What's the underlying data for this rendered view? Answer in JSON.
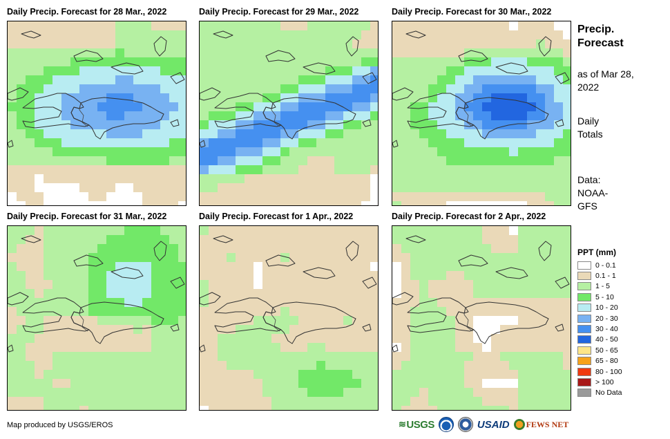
{
  "panels": [
    {
      "title": "Daily Precip. Forecast for 28 Mar., 2022"
    },
    {
      "title": "Daily Precip. Forecast for 29 Mar., 2022"
    },
    {
      "title": "Daily Precip. Forecast for 30 Mar., 2022"
    },
    {
      "title": "Daily Precip. Forecast for 31 Mar., 2022"
    },
    {
      "title": "Daily Precip. Forecast for 1 Apr., 2022"
    },
    {
      "title": "Daily Precip. Forecast for 2 Apr., 2022"
    }
  ],
  "side": {
    "title": "Precip. Forecast",
    "as_of": "as of Mar 28, 2022",
    "daily": "Daily Totals",
    "data": "Data: NOAA- GFS"
  },
  "legend": {
    "title": "PPT (mm)",
    "items": [
      {
        "label": "0 - 0.1",
        "color": "#ffffff"
      },
      {
        "label": "0.1 - 1",
        "color": "#ead9b8"
      },
      {
        "label": "1 - 5",
        "color": "#b5f0a2"
      },
      {
        "label": "5 - 10",
        "color": "#72e868"
      },
      {
        "label": "10 - 20",
        "color": "#b8ecf2"
      },
      {
        "label": "20 - 30",
        "color": "#78b2f2"
      },
      {
        "label": "30 - 40",
        "color": "#4590f0"
      },
      {
        "label": "40 - 50",
        "color": "#2266e0"
      },
      {
        "label": "50 - 65",
        "color": "#fde588"
      },
      {
        "label": "65 - 80",
        "color": "#f7a21a"
      },
      {
        "label": "80 - 100",
        "color": "#f03a10"
      },
      {
        "label": "> 100",
        "color": "#a81818"
      },
      {
        "label": "No Data",
        "color": "#9a9a9a"
      }
    ]
  },
  "credit": "Map produced by USGS/EROS",
  "logos": {
    "usgs": "USGS",
    "usaid": "USAID",
    "fews": "FEWS NET"
  }
}
